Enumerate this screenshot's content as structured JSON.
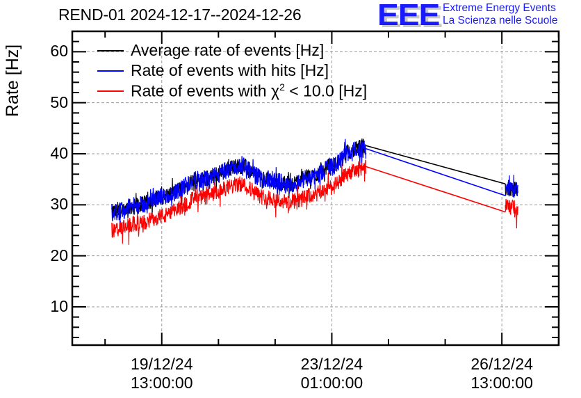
{
  "header": {
    "title": "REND-01 2024-12-17--2024-12-26"
  },
  "logo": {
    "letters": "EEE",
    "line1": "Extreme Energy Events",
    "line2": "La Scienza nelle Scuole",
    "color": "#1a1aff"
  },
  "chart_data": {
    "type": "line",
    "title": "REND-01 2024-12-17--2024-12-26",
    "xlabel": "",
    "ylabel": "Rate [Hz]",
    "x_unit": "hours since 2024-12-17 00:00",
    "xlim": [
      16.8,
      257.1
    ],
    "ylim": [
      2.5,
      64
    ],
    "grid": true,
    "legend_position": "top-left",
    "yticks": [
      10,
      20,
      30,
      40,
      50,
      60
    ],
    "ytick_labels": [
      "10",
      "20",
      "30",
      "40",
      "50",
      "60"
    ],
    "xticks": [
      61,
      145,
      229
    ],
    "xtick_labels": [
      [
        "19/12/24",
        "13:00:00"
      ],
      [
        "23/12/24",
        "01:00:00"
      ],
      [
        "26/12/24",
        "13:00:00"
      ]
    ],
    "x_minor_step_hours": 28,
    "series": [
      {
        "name": "Average rate of events [Hz]",
        "color": "#000000",
        "noise": 1.6,
        "segments": [
          {
            "x": [
              36.3,
              50,
              61,
              80,
              100,
              112,
              125,
              135,
              145,
              155,
              161.8
            ],
            "y": [
              28.6,
              30.0,
              31.6,
              35.0,
              37.6,
              35.1,
              34.1,
              35.6,
              37.6,
              40.6,
              41.6
            ]
          },
          {
            "x": [
              161.8,
              230.7
            ],
            "y": [
              41.6,
              34.1
            ],
            "connector": true
          },
          {
            "x": [
              230.7,
              236.9
            ],
            "y": [
              33.2,
              33.0
            ]
          }
        ]
      },
      {
        "name": "Rate of events with hits [Hz]",
        "color": "#0000ff",
        "noise": 1.8,
        "segments": [
          {
            "x": [
              36.3,
              50,
              61,
              80,
              100,
              112,
              125,
              135,
              145,
              155,
              161.8
            ],
            "y": [
              28.5,
              29.9,
              31.5,
              34.9,
              37.5,
              35.0,
              34.0,
              35.5,
              37.5,
              40.5,
              41.3
            ]
          },
          {
            "x": [
              161.8,
              230.7
            ],
            "y": [
              41.0,
              31.8
            ],
            "connector": true
          },
          {
            "x": [
              230.7,
              236.9
            ],
            "y": [
              33.2,
              33.0
            ]
          }
        ]
      },
      {
        "name": "Rate of events with χ² < 10.0 [Hz]",
        "color": "#ff0000",
        "noise": 1.6,
        "segments": [
          {
            "x": [
              36.3,
              50,
              61,
              80,
              100,
              112,
              125,
              135,
              145,
              155,
              161.8
            ],
            "y": [
              25.0,
              26.3,
              27.8,
              31.4,
              34.0,
              31.5,
              30.4,
              31.8,
              33.5,
              36.5,
              37.5
            ]
          },
          {
            "x": [
              161.8,
              230.7
            ],
            "y": [
              37.5,
              28.6
            ],
            "connector": true
          },
          {
            "x": [
              230.7,
              236.9
            ],
            "y": [
              29.6,
              29.4
            ]
          }
        ]
      }
    ]
  },
  "legend": {
    "items": [
      {
        "label": "Average rate of events [Hz]",
        "color": "#000000"
      },
      {
        "label": "Rate of events with hits [Hz]",
        "color": "#0000ff"
      },
      {
        "label_prefix": "Rate of events with χ",
        "label_sup": "2",
        "label_suffix": " < 10.0 [Hz]",
        "color": "#ff0000"
      }
    ]
  }
}
